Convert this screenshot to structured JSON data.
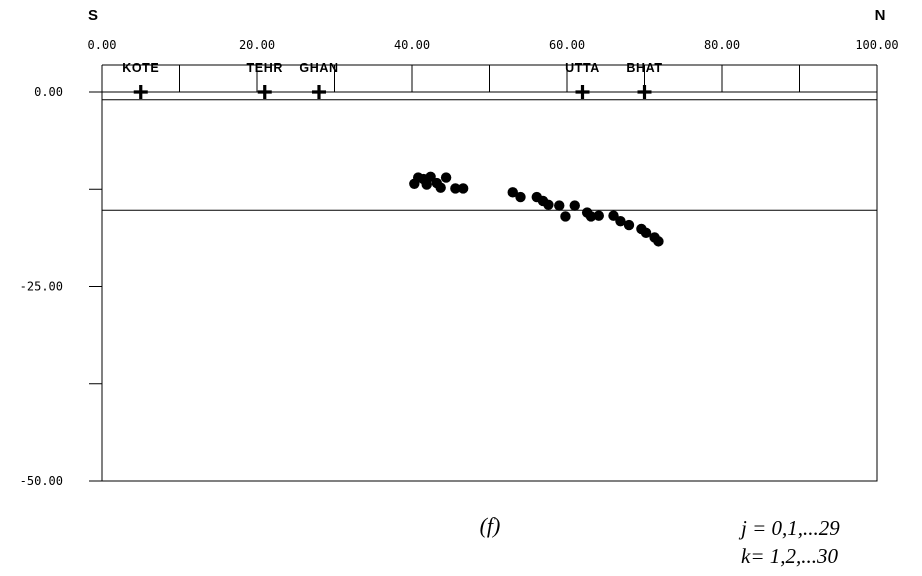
{
  "chart_data": {
    "type": "scatter",
    "direction_left": "S",
    "direction_right": "N",
    "x_ticks": [
      0,
      10,
      20,
      30,
      40,
      50,
      60,
      70,
      80,
      90,
      100
    ],
    "x_tick_labels": [
      "0.00",
      "20.00",
      "40.00",
      "60.00",
      "80.00",
      "100.00"
    ],
    "x_tick_label_values": [
      0,
      20,
      40,
      60,
      80,
      100
    ],
    "xlim": [
      0,
      100
    ],
    "y_ticks": [
      0,
      -12.5,
      -25,
      -37.5,
      -50
    ],
    "y_tick_labels": [
      "0.00",
      "-25.00",
      "-50.00"
    ],
    "y_tick_label_values": [
      0,
      -25,
      -50
    ],
    "ylim": [
      -50,
      0
    ],
    "reference_lines_y": [
      0,
      -1,
      -15.2
    ],
    "stations": [
      {
        "name": "KOTE",
        "x": 5
      },
      {
        "name": "TEHR",
        "x": 21
      },
      {
        "name": "GHAN",
        "x": 28
      },
      {
        "name": "UTTA",
        "x": 62
      },
      {
        "name": "BHAT",
        "x": 70
      }
    ],
    "points": [
      {
        "x": 40.3,
        "y": -11.8
      },
      {
        "x": 40.8,
        "y": -11.0
      },
      {
        "x": 41.5,
        "y": -11.2
      },
      {
        "x": 41.9,
        "y": -11.9
      },
      {
        "x": 42.4,
        "y": -10.9
      },
      {
        "x": 43.2,
        "y": -11.7
      },
      {
        "x": 43.7,
        "y": -12.3
      },
      {
        "x": 44.4,
        "y": -11.0
      },
      {
        "x": 45.6,
        "y": -12.4
      },
      {
        "x": 46.6,
        "y": -12.4
      },
      {
        "x": 53.0,
        "y": -12.9
      },
      {
        "x": 54.0,
        "y": -13.5
      },
      {
        "x": 56.1,
        "y": -13.5
      },
      {
        "x": 56.9,
        "y": -14.0
      },
      {
        "x": 57.6,
        "y": -14.5
      },
      {
        "x": 59.0,
        "y": -14.6
      },
      {
        "x": 59.8,
        "y": -16.0
      },
      {
        "x": 61.0,
        "y": -14.6
      },
      {
        "x": 62.6,
        "y": -15.5
      },
      {
        "x": 63.1,
        "y": -16.0
      },
      {
        "x": 64.1,
        "y": -15.9
      },
      {
        "x": 66.0,
        "y": -15.9
      },
      {
        "x": 66.9,
        "y": -16.6
      },
      {
        "x": 68.0,
        "y": -17.1
      },
      {
        "x": 69.6,
        "y": -17.6
      },
      {
        "x": 70.2,
        "y": -18.1
      },
      {
        "x": 71.3,
        "y": -18.7
      },
      {
        "x": 71.8,
        "y": -19.2
      }
    ]
  },
  "panel_label": "(f)",
  "notes": [
    "j = 0,1,...29",
    "k= 1,2,...30"
  ],
  "colors": {
    "foreground": "#000000",
    "background": "#ffffff"
  }
}
